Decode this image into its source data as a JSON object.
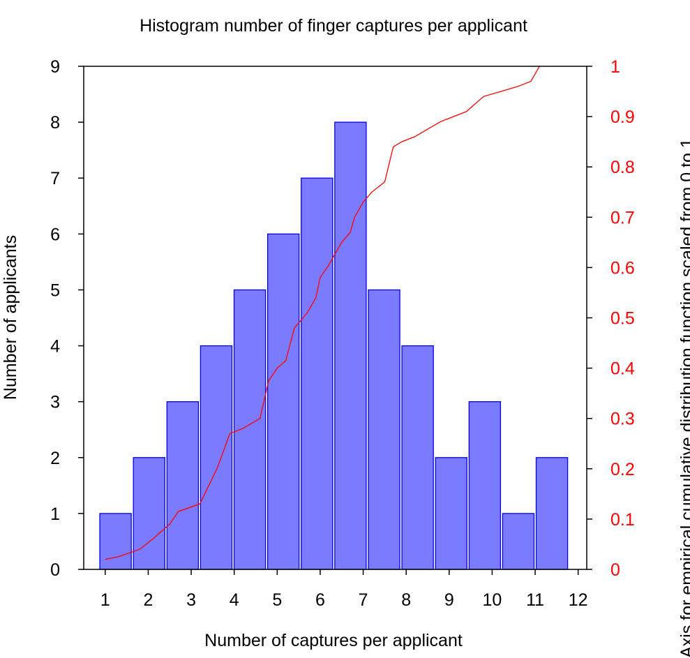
{
  "chart_data": {
    "type": "bar",
    "title": "Histogram number of finger captures per applicant",
    "xlabel": "Number of captures per applicant",
    "ylabel": "Number of applicants",
    "y2label": "Axis for empirical cumulative distribution function scaled from 0 to 1",
    "xlim": [
      0.5,
      12.2
    ],
    "ylim": [
      0,
      9
    ],
    "y2lim": [
      0,
      1
    ],
    "x_ticks": [
      "1",
      "2",
      "3",
      "4",
      "5",
      "6",
      "7",
      "8",
      "9",
      "10",
      "11",
      "12"
    ],
    "y_ticks": [
      "0",
      "1",
      "2",
      "3",
      "4",
      "5",
      "6",
      "7",
      "8",
      "9"
    ],
    "y2_ticks": [
      "0",
      "0.1",
      "0.2",
      "0.3",
      "0.4",
      "0.5",
      "0.6",
      "0.7",
      "0.8",
      "0.9",
      "1"
    ],
    "series": [
      {
        "type": "bar",
        "values": [
          1,
          2,
          3,
          4,
          5,
          6,
          7,
          8,
          5,
          4,
          2,
          3,
          1,
          2
        ],
        "color": "#7b7bff",
        "edge_color": "#0000ee"
      },
      {
        "type": "line",
        "axis": "right",
        "color": "#ff0000",
        "x": [
          1.0,
          1.3,
          1.8,
          2.1,
          2.5,
          2.7,
          3.2,
          3.6,
          3.9,
          4.2,
          4.6,
          4.8,
          5.0,
          5.2,
          5.4,
          5.7,
          5.9,
          6.0,
          6.2,
          6.5,
          6.7,
          6.8,
          7.0,
          7.2,
          7.5,
          7.7,
          7.9,
          8.2,
          8.4,
          8.8,
          9.1,
          9.4,
          9.8,
          10.2,
          10.6,
          10.9,
          11.1
        ],
        "y": [
          0.02,
          0.025,
          0.04,
          0.06,
          0.09,
          0.115,
          0.13,
          0.2,
          0.27,
          0.28,
          0.3,
          0.375,
          0.4,
          0.415,
          0.48,
          0.51,
          0.54,
          0.58,
          0.605,
          0.65,
          0.67,
          0.7,
          0.73,
          0.75,
          0.77,
          0.84,
          0.85,
          0.86,
          0.87,
          0.89,
          0.9,
          0.91,
          0.94,
          0.95,
          0.96,
          0.97,
          1.0
        ]
      }
    ],
    "grid": false,
    "legend": "none",
    "colors": {
      "axis": "#000000",
      "secondary_axis": "#ff0000"
    }
  }
}
